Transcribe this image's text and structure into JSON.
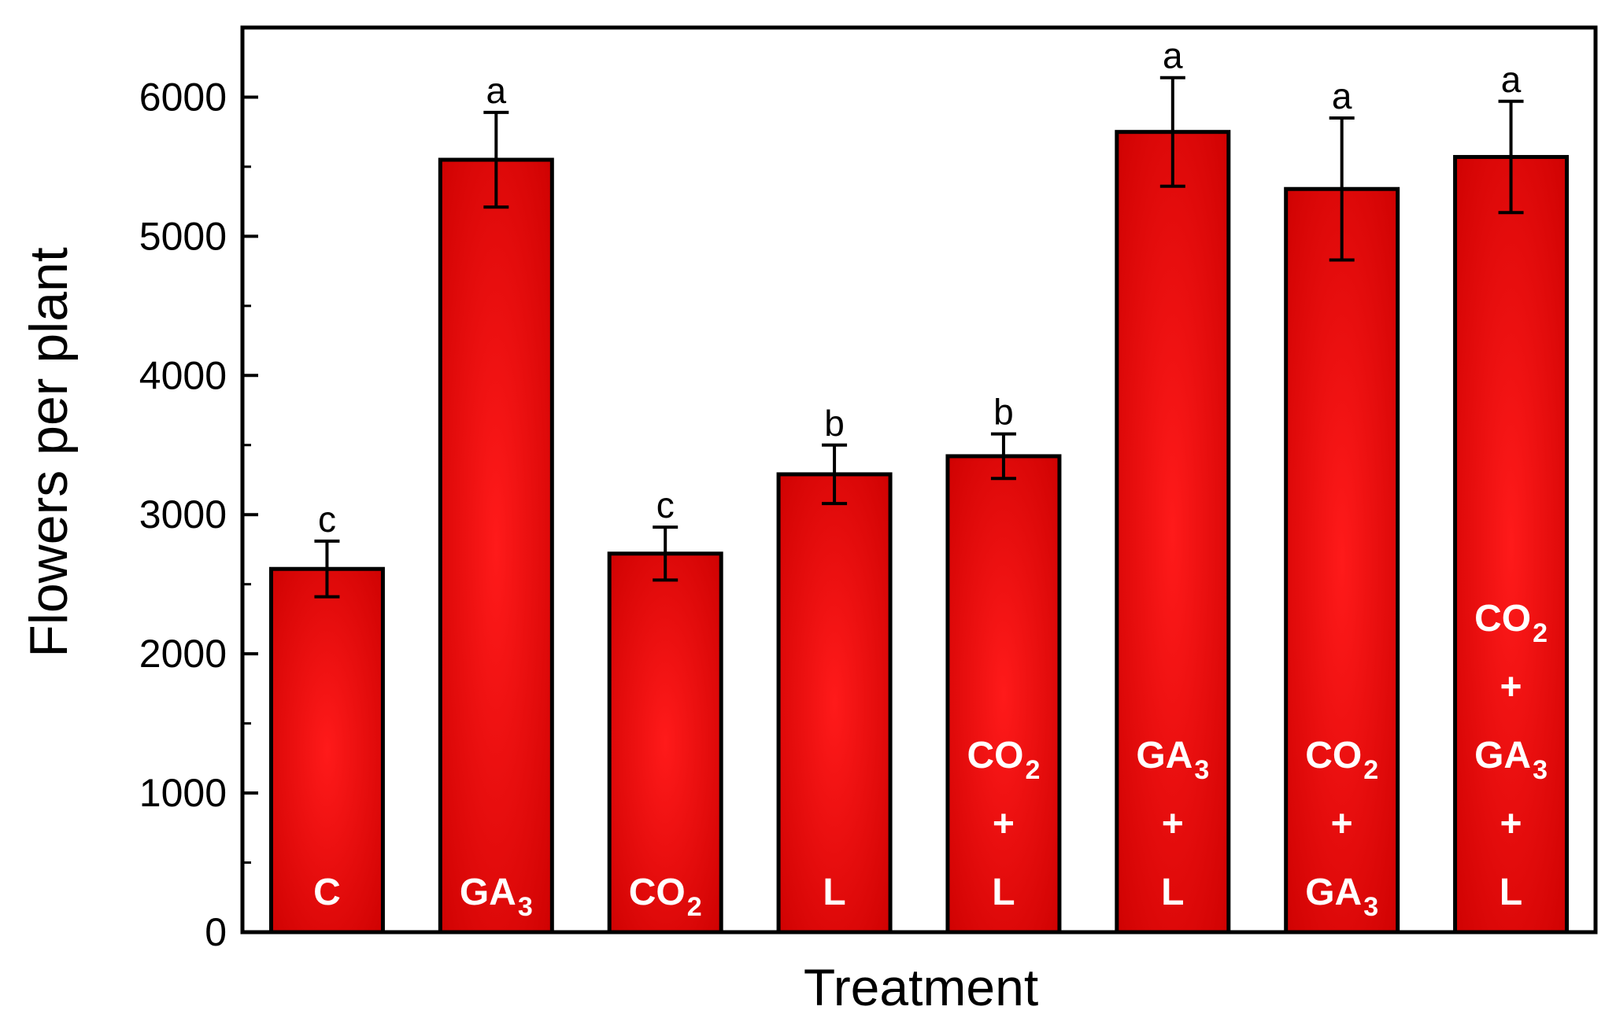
{
  "chart_data": {
    "type": "bar",
    "title": "",
    "xlabel": "Treatment",
    "ylabel": "Flowers per plant",
    "ylim": [
      0,
      6500
    ],
    "yticks": [
      0,
      1000,
      2000,
      3000,
      4000,
      5000,
      6000
    ],
    "ytick_labels": [
      "0",
      "1000",
      "2000",
      "3000",
      "4000",
      "5000",
      "6000"
    ],
    "grid": false,
    "bar_color": "#e00000",
    "bar_highlight_color": "#ff1a1a",
    "categories": [
      {
        "id": "C",
        "lines": [
          [
            {
              "t": "C"
            }
          ]
        ]
      },
      {
        "id": "GA3",
        "lines": [
          [
            {
              "t": "GA"
            },
            {
              "t": "3",
              "sub": true
            }
          ]
        ]
      },
      {
        "id": "CO2",
        "lines": [
          [
            {
              "t": "CO"
            },
            {
              "t": "2",
              "sub": true
            }
          ]
        ]
      },
      {
        "id": "L",
        "lines": [
          [
            {
              "t": "L"
            }
          ]
        ]
      },
      {
        "id": "CO2+L",
        "lines": [
          [
            {
              "t": "CO"
            },
            {
              "t": "2",
              "sub": true
            }
          ],
          [
            {
              "t": "+"
            }
          ],
          [
            {
              "t": "L"
            }
          ]
        ]
      },
      {
        "id": "GA3+L",
        "lines": [
          [
            {
              "t": "GA"
            },
            {
              "t": "3",
              "sub": true
            }
          ],
          [
            {
              "t": "+"
            }
          ],
          [
            {
              "t": "L"
            }
          ]
        ]
      },
      {
        "id": "CO2+GA3",
        "lines": [
          [
            {
              "t": "CO"
            },
            {
              "t": "2",
              "sub": true
            }
          ],
          [
            {
              "t": "+"
            }
          ],
          [
            {
              "t": "GA"
            },
            {
              "t": "3",
              "sub": true
            }
          ]
        ]
      },
      {
        "id": "CO2+GA3+L",
        "lines": [
          [
            {
              "t": "CO"
            },
            {
              "t": "2",
              "sub": true
            }
          ],
          [
            {
              "t": "+"
            }
          ],
          [
            {
              "t": "GA"
            },
            {
              "t": "3",
              "sub": true
            }
          ],
          [
            {
              "t": "+"
            }
          ],
          [
            {
              "t": "L"
            }
          ]
        ]
      }
    ],
    "values": [
      2610,
      5550,
      2720,
      3290,
      3420,
      5750,
      5340,
      5570
    ],
    "errors": [
      200,
      340,
      190,
      210,
      160,
      390,
      510,
      400
    ],
    "significance": [
      "c",
      "a",
      "c",
      "b",
      "b",
      "a",
      "a",
      "a"
    ]
  }
}
